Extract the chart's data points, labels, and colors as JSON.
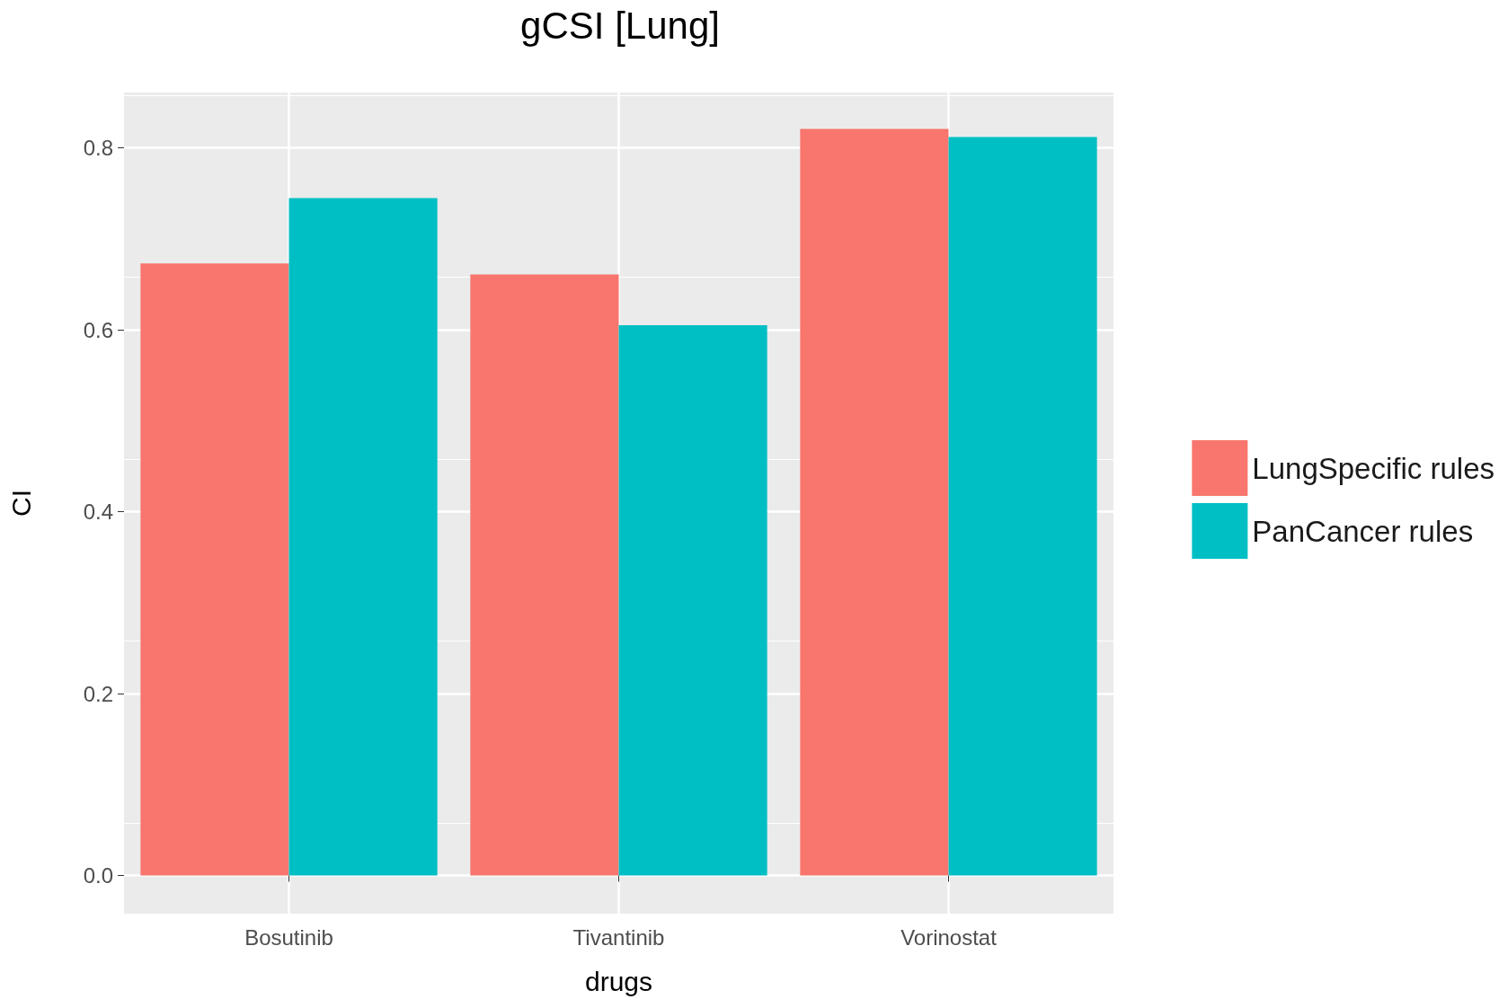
{
  "chart_data": {
    "type": "bar",
    "title": "gCSI [Lung]",
    "xlabel": "drugs",
    "ylabel": "CI",
    "categories": [
      "Bosutinib",
      "Tivantinib",
      "Vorinostat"
    ],
    "series": [
      {
        "name": "LungSpecific rules",
        "color": "#f8766d",
        "values": [
          0.673,
          0.661,
          0.821
        ]
      },
      {
        "name": "PanCancer rules",
        "color": "#00bfc4",
        "values": [
          0.745,
          0.605,
          0.812
        ]
      }
    ],
    "ylim": [
      -0.042,
      0.861
    ],
    "yticks": [
      {
        "value": 0,
        "label": "0.0"
      },
      {
        "value": 0.2,
        "label": "0.2"
      },
      {
        "value": 0.4,
        "label": "0.4"
      },
      {
        "value": 0.6,
        "label": "0.6"
      },
      {
        "value": 0.8,
        "label": "0.8"
      }
    ],
    "grid": true,
    "legend": "right"
  }
}
